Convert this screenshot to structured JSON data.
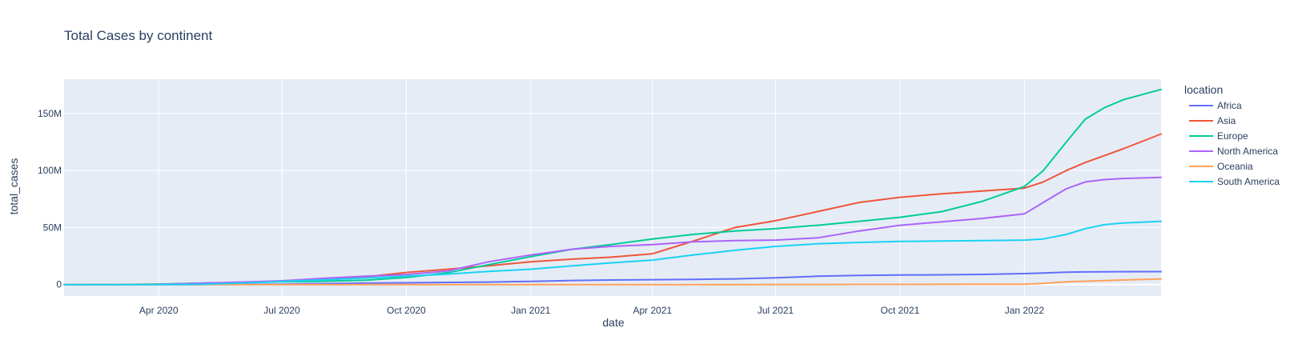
{
  "chart_data": {
    "type": "line",
    "title": "Total Cases by continent",
    "xlabel": "date",
    "ylabel": "total_cases",
    "legend_title": "location",
    "legend_position": "right",
    "grid": true,
    "x_range": [
      "2020-01-22",
      "2022-04-12"
    ],
    "ylim": [
      -10000000,
      180000000
    ],
    "x_ticks": [
      {
        "date": "2020-04-01",
        "label": "Apr 2020"
      },
      {
        "date": "2020-07-01",
        "label": "Jul 2020"
      },
      {
        "date": "2020-10-01",
        "label": "Oct 2020"
      },
      {
        "date": "2021-01-01",
        "label": "Jan 2021"
      },
      {
        "date": "2021-04-01",
        "label": "Apr 2021"
      },
      {
        "date": "2021-07-01",
        "label": "Jul 2021"
      },
      {
        "date": "2021-10-01",
        "label": "Oct 2021"
      },
      {
        "date": "2022-01-01",
        "label": "Jan 2022"
      }
    ],
    "y_ticks": [
      {
        "value": 0,
        "label": "0"
      },
      {
        "value": 50000000,
        "label": "50M"
      },
      {
        "value": 100000000,
        "label": "100M"
      },
      {
        "value": 150000000,
        "label": "150M"
      }
    ],
    "x": [
      "2020-01-22",
      "2020-03-01",
      "2020-04-01",
      "2020-05-01",
      "2020-06-01",
      "2020-07-01",
      "2020-08-01",
      "2020-09-01",
      "2020-10-01",
      "2020-11-01",
      "2020-12-01",
      "2021-01-01",
      "2021-02-01",
      "2021-03-01",
      "2021-04-01",
      "2021-05-01",
      "2021-06-01",
      "2021-07-01",
      "2021-08-01",
      "2021-09-01",
      "2021-10-01",
      "2021-11-01",
      "2021-12-01",
      "2022-01-01",
      "2022-01-15",
      "2022-02-01",
      "2022-02-15",
      "2022-03-01",
      "2022-03-15",
      "2022-04-12"
    ],
    "series": [
      {
        "name": "Africa",
        "color": "#636efa",
        "values": [
          0,
          0,
          0.005,
          0.04,
          0.15,
          0.4,
          0.9,
          1.3,
          1.6,
          1.9,
          2.2,
          2.8,
          3.6,
          4.0,
          4.3,
          4.6,
          5.0,
          6.0,
          7.3,
          8.0,
          8.4,
          8.6,
          8.9,
          9.6,
          10.2,
          10.9,
          11.1,
          11.2,
          11.3,
          11.4
        ]
      },
      {
        "name": "Asia",
        "color": "#ef553b",
        "values": [
          0.001,
          0.09,
          0.3,
          0.8,
          1.5,
          2.9,
          4.5,
          6.8,
          10.6,
          13.5,
          16.5,
          20.0,
          22.3,
          24.0,
          27.0,
          38.0,
          50.0,
          56.0,
          64.0,
          72.0,
          76.5,
          79.5,
          82.0,
          84.5,
          90.0,
          100.0,
          107.0,
          113.0,
          119.0,
          132.0
        ]
      },
      {
        "name": "Europe",
        "color": "#00cc96",
        "values": [
          0,
          0.002,
          0.45,
          1.2,
          1.8,
          2.4,
          3.0,
          3.9,
          6.2,
          10.5,
          17.5,
          24.5,
          31.0,
          35.0,
          40.0,
          44.0,
          47.0,
          49.0,
          52.0,
          55.5,
          59.0,
          64.0,
          73.0,
          86.0,
          100.0,
          125.0,
          145.0,
          155.0,
          162.0,
          171.0
        ]
      },
      {
        "name": "North America",
        "color": "#ab63fa",
        "values": [
          0,
          0.001,
          0.2,
          1.2,
          2.2,
          3.3,
          5.5,
          7.3,
          8.8,
          12.0,
          20.0,
          26.0,
          31.0,
          33.5,
          35.0,
          37.5,
          38.5,
          39.0,
          41.0,
          47.0,
          52.0,
          55.0,
          58.0,
          62.0,
          72.0,
          84.0,
          90.0,
          92.0,
          93.0,
          94.0
        ]
      },
      {
        "name": "Oceania",
        "color": "#ffa15a",
        "values": [
          0,
          0.003,
          0.005,
          0.008,
          0.009,
          0.01,
          0.02,
          0.03,
          0.035,
          0.04,
          0.045,
          0.05,
          0.05,
          0.055,
          0.055,
          0.06,
          0.06,
          0.07,
          0.1,
          0.15,
          0.2,
          0.25,
          0.3,
          0.4,
          1.0,
          2.5,
          3.0,
          3.5,
          4.0,
          5.0
        ]
      },
      {
        "name": "South America",
        "color": "#19d3f3",
        "values": [
          0,
          0.0005,
          0.01,
          0.25,
          1.3,
          2.7,
          4.2,
          5.8,
          7.4,
          9.2,
          11.5,
          13.5,
          16.5,
          19.0,
          21.5,
          26.0,
          30.0,
          33.5,
          35.8,
          37.0,
          37.8,
          38.2,
          38.6,
          39.0,
          40.0,
          44.0,
          49.0,
          52.5,
          54.0,
          55.5
        ]
      }
    ]
  }
}
